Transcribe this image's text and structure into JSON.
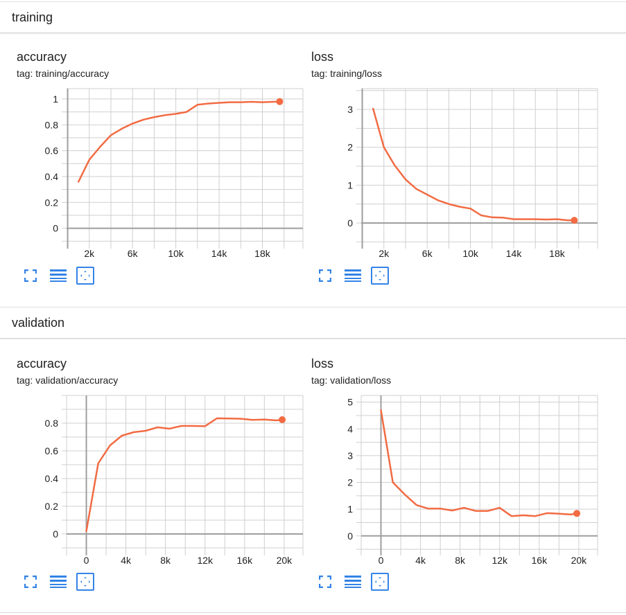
{
  "colors": {
    "line": "#f26b43",
    "grid": "#cfcfcf",
    "axis": "#9e9e9e",
    "icon": "#3383e6"
  },
  "sections": [
    {
      "title": "training",
      "cards": [
        {
          "title": "accuracy",
          "tag": "tag: training/accuracy",
          "chart_data": {
            "type": "line",
            "title": "accuracy",
            "xlabel": "",
            "ylabel": "",
            "xlim": [
              -100,
              21750
            ],
            "ylim": [
              -0.12,
              1.08
            ],
            "x_ticks": [
              2000,
              6000,
              10000,
              14000,
              18000
            ],
            "x_tick_labels": [
              "2k",
              "6k",
              "10k",
              "14k",
              "18k"
            ],
            "y_ticks": [
              0,
              0.2,
              0.4,
              0.6,
              0.8,
              1
            ],
            "y_tick_labels": [
              "0",
              "0.2",
              "0.4",
              "0.6",
              "0.8",
              "1"
            ],
            "grid": true,
            "series": [
              {
                "x": [
                  1000,
                  2000,
                  3000,
                  4000,
                  5000,
                  6000,
                  7000,
                  8000,
                  9000,
                  10000,
                  11000,
                  12000,
                  13000,
                  14000,
                  15000,
                  16000,
                  17000,
                  18000,
                  19000,
                  19600
                ],
                "y": [
                  0.36,
                  0.53,
                  0.63,
                  0.72,
                  0.77,
                  0.81,
                  0.84,
                  0.86,
                  0.875,
                  0.885,
                  0.9,
                  0.955,
                  0.965,
                  0.97,
                  0.975,
                  0.975,
                  0.978,
                  0.975,
                  0.978,
                  0.98
                ]
              }
            ]
          }
        },
        {
          "title": "loss",
          "tag": "tag: training/loss",
          "chart_data": {
            "type": "line",
            "title": "loss",
            "xlabel": "",
            "ylabel": "",
            "xlim": [
              -100,
              21750
            ],
            "ylim": [
              -0.55,
              3.55
            ],
            "x_ticks": [
              2000,
              6000,
              10000,
              14000,
              18000
            ],
            "x_tick_labels": [
              "2k",
              "6k",
              "10k",
              "14k",
              "18k"
            ],
            "y_ticks": [
              0,
              1,
              2,
              3
            ],
            "y_tick_labels": [
              "0",
              "1",
              "2",
              "3"
            ],
            "grid": true,
            "series": [
              {
                "x": [
                  1000,
                  2000,
                  3000,
                  4000,
                  5000,
                  6000,
                  7000,
                  8000,
                  9000,
                  10000,
                  11000,
                  12000,
                  13000,
                  14000,
                  15000,
                  16000,
                  17000,
                  18000,
                  19000,
                  19600
                ],
                "y": [
                  3.02,
                  2.0,
                  1.52,
                  1.15,
                  0.9,
                  0.75,
                  0.6,
                  0.5,
                  0.43,
                  0.38,
                  0.2,
                  0.15,
                  0.14,
                  0.1,
                  0.1,
                  0.1,
                  0.09,
                  0.1,
                  0.07,
                  0.07
                ]
              }
            ]
          }
        }
      ]
    },
    {
      "title": "validation",
      "cards": [
        {
          "title": "accuracy",
          "tag": "tag: validation/accuracy",
          "chart_data": {
            "type": "line",
            "title": "accuracy",
            "xlabel": "",
            "ylabel": "",
            "xlim": [
              -2000,
              21900
            ],
            "ylim": [
              -0.12,
              1.0
            ],
            "x_ticks": [
              0,
              4000,
              8000,
              12000,
              16000,
              20000
            ],
            "x_tick_labels": [
              "0",
              "4k",
              "8k",
              "12k",
              "16k",
              "20k"
            ],
            "y_ticks": [
              0,
              0.2,
              0.4,
              0.6,
              0.8
            ],
            "y_tick_labels": [
              "0",
              "0.2",
              "0.4",
              "0.6",
              "0.8"
            ],
            "grid": true,
            "series": [
              {
                "x": [
                  0,
                  1200,
                  2400,
                  3600,
                  4800,
                  6000,
                  7200,
                  8400,
                  9600,
                  10800,
                  12000,
                  13200,
                  14400,
                  15600,
                  16800,
                  18000,
                  19200,
                  19800
                ],
                "y": [
                  0.02,
                  0.51,
                  0.64,
                  0.71,
                  0.735,
                  0.745,
                  0.77,
                  0.76,
                  0.78,
                  0.78,
                  0.778,
                  0.835,
                  0.834,
                  0.832,
                  0.824,
                  0.826,
                  0.82,
                  0.825
                ]
              }
            ]
          }
        },
        {
          "title": "loss",
          "tag": "tag: validation/loss",
          "chart_data": {
            "type": "line",
            "title": "loss",
            "xlabel": "",
            "ylabel": "",
            "xlim": [
              -2000,
              21900
            ],
            "ylim": [
              -0.55,
              5.25
            ],
            "x_ticks": [
              0,
              4000,
              8000,
              12000,
              16000,
              20000
            ],
            "x_tick_labels": [
              "0",
              "4k",
              "8k",
              "12k",
              "16k",
              "20k"
            ],
            "y_ticks": [
              0,
              1,
              2,
              3,
              4,
              5
            ],
            "y_tick_labels": [
              "0",
              "1",
              "2",
              "3",
              "4",
              "5"
            ],
            "grid": true,
            "series": [
              {
                "x": [
                  0,
                  1200,
                  2400,
                  3600,
                  4800,
                  6000,
                  7200,
                  8400,
                  9600,
                  10800,
                  12000,
                  13200,
                  14400,
                  15600,
                  16800,
                  18000,
                  19200,
                  19800
                ],
                "y": [
                  4.7,
                  2.0,
                  1.55,
                  1.15,
                  1.02,
                  1.02,
                  0.95,
                  1.05,
                  0.93,
                  0.93,
                  1.05,
                  0.74,
                  0.77,
                  0.74,
                  0.85,
                  0.83,
                  0.8,
                  0.84
                ]
              }
            ]
          }
        }
      ]
    }
  ],
  "toolbar": {
    "expand_icon": "fullscreen-icon",
    "log_icon": "lines-icon",
    "fit_icon": "fit-domain-icon"
  }
}
